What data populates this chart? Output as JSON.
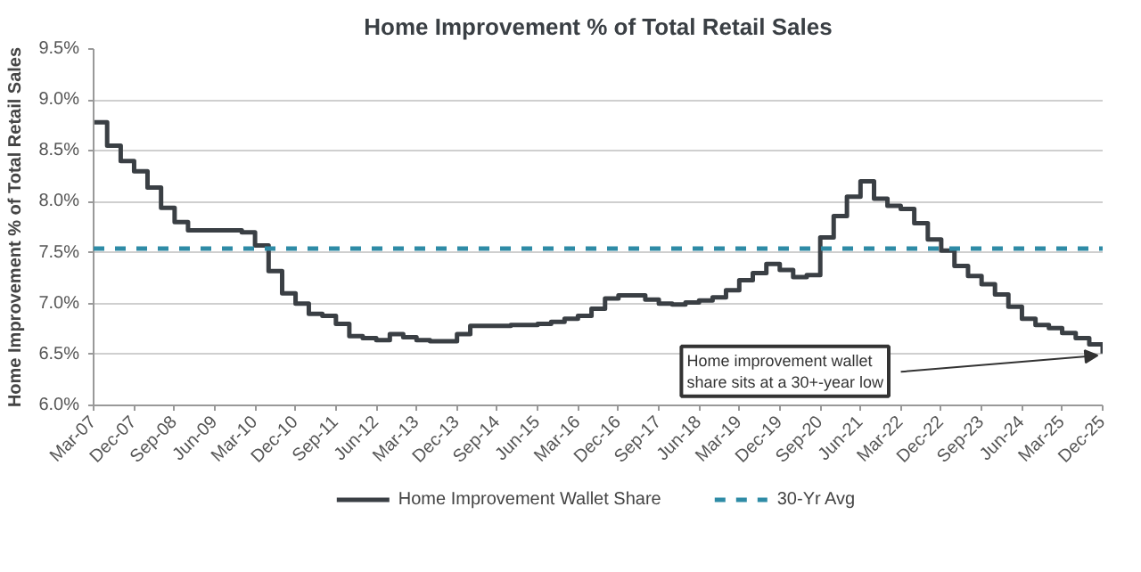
{
  "chart_data": {
    "type": "step",
    "title": "Home Improvement % of Total Retail Sales",
    "ylabel": "Home Improvement % of Total Retail Sales",
    "x": [
      "2007-03",
      "2007-06",
      "2007-09",
      "2007-12",
      "2008-03",
      "2008-06",
      "2008-09",
      "2008-12",
      "2009-03",
      "2009-06",
      "2009-09",
      "2009-12",
      "2010-03",
      "2010-06",
      "2010-09",
      "2010-12",
      "2011-03",
      "2011-06",
      "2011-09",
      "2011-12",
      "2012-03",
      "2012-06",
      "2012-09",
      "2012-12",
      "2013-03",
      "2013-06",
      "2013-09",
      "2013-12",
      "2014-03",
      "2014-06",
      "2014-09",
      "2014-12",
      "2015-03",
      "2015-06",
      "2015-09",
      "2015-12",
      "2016-03",
      "2016-06",
      "2016-09",
      "2016-12",
      "2017-03",
      "2017-06",
      "2017-09",
      "2017-12",
      "2018-03",
      "2018-06",
      "2018-09",
      "2018-12",
      "2019-03",
      "2019-06",
      "2019-09",
      "2019-12",
      "2020-03",
      "2020-06",
      "2020-09",
      "2020-12",
      "2021-03",
      "2021-06",
      "2021-09",
      "2021-12",
      "2022-03",
      "2022-06",
      "2022-09",
      "2022-12",
      "2023-03",
      "2023-06",
      "2023-09",
      "2023-12",
      "2024-03",
      "2024-06",
      "2024-09",
      "2024-12",
      "2025-03",
      "2025-06",
      "2025-09",
      "2025-12"
    ],
    "series": [
      {
        "name": "Home Improvement Wallet Share",
        "color": "#3a3f44",
        "values": [
          8.78,
          8.55,
          8.4,
          8.3,
          8.14,
          7.94,
          7.8,
          7.72,
          7.72,
          7.72,
          7.72,
          7.7,
          7.57,
          7.32,
          7.1,
          7.0,
          6.9,
          6.88,
          6.8,
          6.68,
          6.66,
          6.64,
          6.7,
          6.67,
          6.64,
          6.63,
          6.63,
          6.7,
          6.78,
          6.78,
          6.78,
          6.79,
          6.79,
          6.8,
          6.82,
          6.85,
          6.88,
          6.95,
          7.05,
          7.08,
          7.08,
          7.04,
          7.0,
          6.99,
          7.01,
          7.03,
          7.06,
          7.13,
          7.23,
          7.3,
          7.39,
          7.33,
          7.26,
          7.28,
          7.65,
          7.86,
          8.05,
          8.2,
          8.03,
          7.96,
          7.93,
          7.79,
          7.63,
          7.52,
          7.37,
          7.27,
          7.19,
          7.09,
          6.97,
          6.85,
          6.79,
          6.76,
          6.71,
          6.66,
          6.6,
          6.51
        ]
      }
    ],
    "ref_lines": [
      {
        "axis": "y",
        "value": 7.54,
        "label": "30-Yr Avg",
        "color": "#2e8ba6",
        "line_style": "dashed"
      }
    ],
    "annotations": [
      {
        "text": "Home improvement wallet\nshare sits at a 30+-year low",
        "x": "2025-12",
        "y": 6.51
      }
    ],
    "xlim": [
      "2007-03",
      "2025-12"
    ],
    "xticks": [
      {
        "value": "2007-03",
        "label": "Mar-07"
      },
      {
        "value": "2007-12",
        "label": "Dec-07"
      },
      {
        "value": "2008-09",
        "label": "Sep-08"
      },
      {
        "value": "2009-06",
        "label": "Jun-09"
      },
      {
        "value": "2010-03",
        "label": "Mar-10"
      },
      {
        "value": "2010-12",
        "label": "Dec-10"
      },
      {
        "value": "2011-09",
        "label": "Sep-11"
      },
      {
        "value": "2012-06",
        "label": "Jun-12"
      },
      {
        "value": "2013-03",
        "label": "Mar-13"
      },
      {
        "value": "2013-12",
        "label": "Dec-13"
      },
      {
        "value": "2014-09",
        "label": "Sep-14"
      },
      {
        "value": "2015-06",
        "label": "Jun-15"
      },
      {
        "value": "2016-03",
        "label": "Mar-16"
      },
      {
        "value": "2016-12",
        "label": "Dec-16"
      },
      {
        "value": "2017-09",
        "label": "Sep-17"
      },
      {
        "value": "2018-06",
        "label": "Jun-18"
      },
      {
        "value": "2019-03",
        "label": "Mar-19"
      },
      {
        "value": "2019-12",
        "label": "Dec-19"
      },
      {
        "value": "2020-09",
        "label": "Sep-20"
      },
      {
        "value": "2021-06",
        "label": "Jun-21"
      },
      {
        "value": "2022-03",
        "label": "Mar-22"
      },
      {
        "value": "2022-12",
        "label": "Dec-22"
      },
      {
        "value": "2023-09",
        "label": "Sep-23"
      },
      {
        "value": "2024-06",
        "label": "Jun-24"
      },
      {
        "value": "2025-03",
        "label": "Mar-25"
      },
      {
        "value": "2025-12",
        "label": "Dec-25"
      }
    ],
    "ylim": [
      6.0,
      9.5
    ],
    "yticks": [
      {
        "value": 6.0,
        "label": "6.0%"
      },
      {
        "value": 6.5,
        "label": "6.5%"
      },
      {
        "value": 7.0,
        "label": "7.0%"
      },
      {
        "value": 7.5,
        "label": "7.5%"
      },
      {
        "value": 8.0,
        "label": "8.0%"
      },
      {
        "value": 8.5,
        "label": "8.5%"
      },
      {
        "value": 9.0,
        "label": "9.0%"
      },
      {
        "value": 9.5,
        "label": "9.5%"
      }
    ],
    "grid": "y",
    "legend": "bottom",
    "line_style": "solid",
    "marker": "none"
  }
}
